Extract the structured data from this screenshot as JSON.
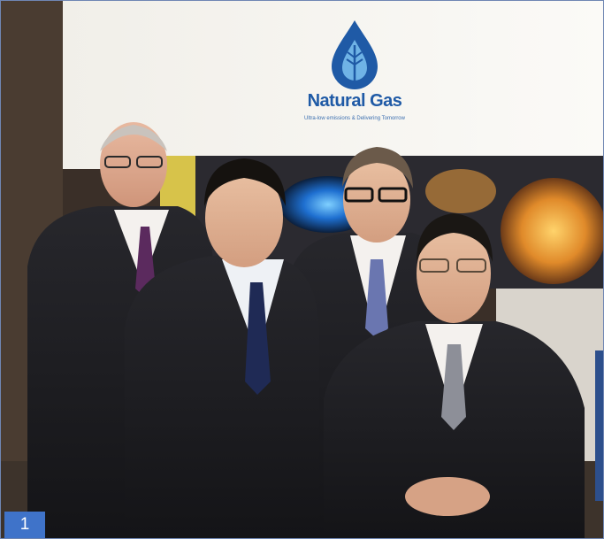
{
  "photo": {
    "description_free": true,
    "logo": {
      "name": "Natural Gas",
      "tagline": "Ultra-low emissions & Delivering Tomorrow",
      "icon": "water-drop-leaf-icon",
      "color": "#1f5aa6"
    },
    "badge": {
      "label": "1",
      "color": "#3f73c9"
    }
  }
}
